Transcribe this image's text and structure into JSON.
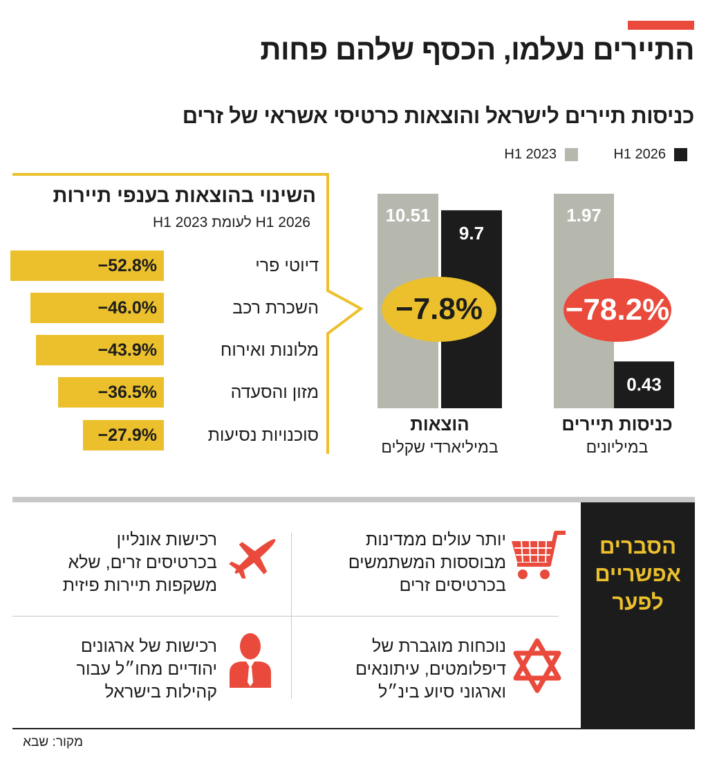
{
  "headline": "התיירים נעלמו, הכסף שלהם פחות",
  "subtitle": "כניסות תיירים לישראל והוצאות כרטיסי אשראי של זרים",
  "legend": [
    {
      "label": "H1 2026",
      "color": "#1c1c1c"
    },
    {
      "label": "H1 2023",
      "color": "#b6b8ad"
    }
  ],
  "chart_data": [
    {
      "type": "bar",
      "title": "",
      "categories": [
        "כניסות תיירים",
        "הוצאות"
      ],
      "units": [
        "במיליונים",
        "במיליארדי שקלים"
      ],
      "series": [
        {
          "name": "H1 2023",
          "values": [
            1.97,
            10.51
          ]
        },
        {
          "name": "H1 2026",
          "values": [
            0.43,
            9.7
          ]
        }
      ],
      "value_labels": {
        "H1 2023": [
          "1.97",
          "10.51"
        ],
        "H1 2026": [
          "0.43",
          "9.7"
        ]
      },
      "change_labels": [
        "-78.2%",
        "-7.8%"
      ]
    },
    {
      "type": "bar",
      "title": "השינוי בהוצאות בענפי תיירות",
      "subtitle": "H1 2026 לעומת H1 2023",
      "categories": [
        "דיוטי פרי",
        "השכרת רכב",
        "מלונות ואירוח",
        "מזון והסעדה",
        "סוכנויות נסיעות"
      ],
      "values": [
        -52.8,
        -46.0,
        -43.9,
        -36.5,
        -27.9
      ],
      "value_labels": [
        "−52.8%",
        "−46.0%",
        "−43.9%",
        "−36.5%",
        "−27.9%"
      ]
    }
  ],
  "change_ellipses": {
    "spending": "−7.8%",
    "entries": "−78.2%"
  },
  "colors": {
    "accent_red": "#e94a3b",
    "accent_yellow": "#ebc02c",
    "dark": "#1c1c1c",
    "gray": "#b6b8ad"
  },
  "reasons": {
    "title": "הסברים\nאפשריים\nלפער",
    "items": [
      {
        "icon": "airplane-icon",
        "text": "יותר עולים ממדינות\nמבוססות המשתמשים\nבכרטיסים זרים"
      },
      {
        "icon": "shopping-cart-icon",
        "text": "רכישות אונליין\nבכרטיסים זרים, שלא\nמשקפות תיירות פיזית"
      },
      {
        "icon": "businessman-icon",
        "text": "נוכחות מוגברת של\nדיפלומטים, עיתונאים\nוארגוני סיוע בינ״ל"
      },
      {
        "icon": "star-of-david-icon",
        "text": "רכישות של ארגונים\nיהודיים מחו״ל עבור\nקהילות בישראל"
      }
    ]
  },
  "source": "מקור: שבא"
}
